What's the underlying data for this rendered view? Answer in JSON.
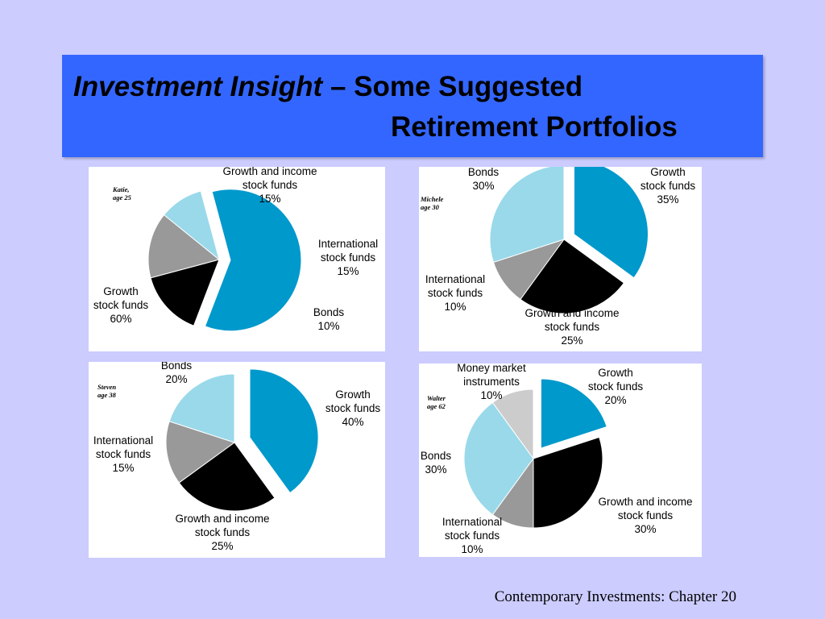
{
  "title": {
    "italic": "Investment Insight",
    "dash": " – Some Suggested",
    "line2": "Retirement Portfolios"
  },
  "footer": "Contemporary Investments: Chapter 20",
  "colors": {
    "background": "#ccccff",
    "title_bar": "#3366ff",
    "growth": "#0099cc",
    "growth_income": "#000000",
    "international": "#999999",
    "bonds": "#99d9ea",
    "money_market": "#cccccc"
  },
  "chart_data": [
    {
      "type": "pie",
      "person": [
        "Katie,",
        "age 25"
      ],
      "slices": [
        {
          "label": [
            "Growth",
            "stock funds",
            "60%"
          ],
          "value": 60,
          "color": "#0099cc",
          "exploded": true
        },
        {
          "label": [
            "Growth and income",
            "stock funds",
            "15%"
          ],
          "value": 15,
          "color": "#000000",
          "exploded": false
        },
        {
          "label": [
            "International",
            "stock funds",
            "15%"
          ],
          "value": 15,
          "color": "#999999",
          "exploded": false
        },
        {
          "label": [
            "Bonds",
            "10%"
          ],
          "value": 10,
          "color": "#99d9ea",
          "exploded": false
        }
      ]
    },
    {
      "type": "pie",
      "person": [
        "Michele",
        "age 30"
      ],
      "slices": [
        {
          "label": [
            "Growth",
            "stock funds",
            "35%"
          ],
          "value": 35,
          "color": "#0099cc",
          "exploded": true
        },
        {
          "label": [
            "Growth and income",
            "stock funds",
            "25%"
          ],
          "value": 25,
          "color": "#000000",
          "exploded": false
        },
        {
          "label": [
            "International",
            "stock funds",
            "10%"
          ],
          "value": 10,
          "color": "#999999",
          "exploded": false
        },
        {
          "label": [
            "Bonds",
            "30%"
          ],
          "value": 30,
          "color": "#99d9ea",
          "exploded": false
        }
      ]
    },
    {
      "type": "pie",
      "person": [
        "Steven",
        "age 38"
      ],
      "slices": [
        {
          "label": [
            "Growth",
            "stock funds",
            "40%"
          ],
          "value": 40,
          "color": "#0099cc",
          "exploded": true
        },
        {
          "label": [
            "Growth and income",
            "stock funds",
            "25%"
          ],
          "value": 25,
          "color": "#000000",
          "exploded": false
        },
        {
          "label": [
            "International",
            "stock funds",
            "15%"
          ],
          "value": 15,
          "color": "#999999",
          "exploded": false
        },
        {
          "label": [
            "Bonds",
            "20%"
          ],
          "value": 20,
          "color": "#99d9ea",
          "exploded": false
        }
      ]
    },
    {
      "type": "pie",
      "person": [
        "Walter",
        "age 62"
      ],
      "slices": [
        {
          "label": [
            "Growth",
            "stock funds",
            "20%"
          ],
          "value": 20,
          "color": "#0099cc",
          "exploded": true
        },
        {
          "label": [
            "Growth and income",
            "stock funds",
            "30%"
          ],
          "value": 30,
          "color": "#000000",
          "exploded": false
        },
        {
          "label": [
            "International",
            "stock funds",
            "10%"
          ],
          "value": 10,
          "color": "#999999",
          "exploded": false
        },
        {
          "label": [
            "Bonds",
            "30%"
          ],
          "value": 30,
          "color": "#99d9ea",
          "exploded": false
        },
        {
          "label": [
            "Money market",
            "instruments",
            "10%"
          ],
          "value": 10,
          "color": "#cccccc",
          "exploded": false
        }
      ]
    }
  ]
}
